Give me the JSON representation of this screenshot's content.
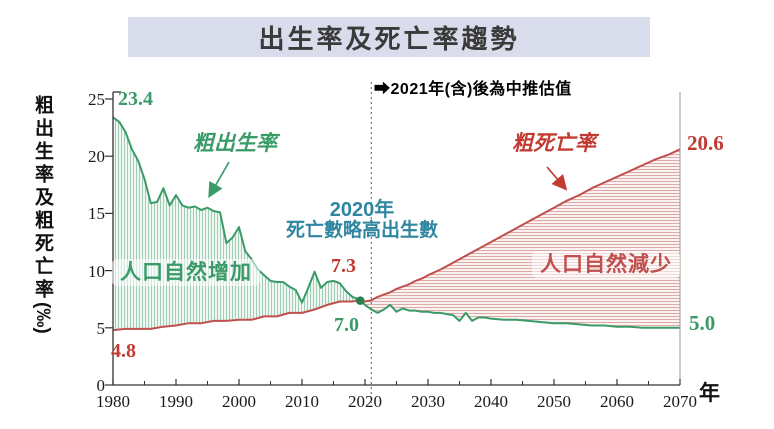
{
  "title": "出生率及死亡率趨勢",
  "colors": {
    "banner_bg": "#d9ddeb",
    "banner_text": "#3a3a3a",
    "green": "#3a9b68",
    "green_dark": "#2e7d4f",
    "red": "#c0504d",
    "red_text": "#c23b33",
    "teal": "#2e86a0",
    "black": "#000000",
    "axis": "#333333",
    "right_border": "#9a9a9a",
    "dotted_line": "#777777"
  },
  "labels": {
    "ylabel_main": "粗出生率及粗死亡率",
    "ylabel_unit": "(‰)",
    "x_unit": "年",
    "birth_start": "23.4",
    "death_start": "4.8",
    "birth_series_label": "粗出生率",
    "death_series_label": "粗死亡率",
    "natural_increase": "人口自然增加",
    "natural_decrease": "人口自然減少",
    "crossover_line1": "2020年",
    "crossover_line2": "死亡數略高出生數",
    "death_2020": "7.3",
    "birth_2020": "7.0",
    "death_end": "20.6",
    "birth_end": "5.0",
    "projection_arrow": "➡",
    "projection_note": "2021年(含)後為中推估值"
  },
  "chart_data": {
    "type": "area",
    "title": "出生率及死亡率趨勢",
    "xlabel": "年",
    "ylabel": "粗出生率及粗死亡率(‰)",
    "x_range": [
      1980,
      2070
    ],
    "y_range": [
      0,
      25
    ],
    "x_ticks": [
      1980,
      1990,
      2000,
      2010,
      2020,
      2030,
      2040,
      2050,
      2060,
      2070
    ],
    "x_minor_ticks": [
      1985,
      1995,
      2005,
      2015,
      2025,
      2035,
      2045,
      2055,
      2065
    ],
    "y_ticks": [
      0,
      5,
      10,
      15,
      20,
      25
    ],
    "grid": false,
    "projection_start": 2021,
    "crossover_note_year": 2020,
    "series": [
      {
        "name": "粗出生率",
        "color": "#3a9b68",
        "hatch": "vertical",
        "points": [
          [
            1980,
            23.4
          ],
          [
            1981,
            23.0
          ],
          [
            1982,
            22.1
          ],
          [
            1983,
            20.6
          ],
          [
            1984,
            19.6
          ],
          [
            1985,
            18.0
          ],
          [
            1986,
            15.9
          ],
          [
            1987,
            16.0
          ],
          [
            1988,
            17.2
          ],
          [
            1989,
            15.7
          ],
          [
            1990,
            16.6
          ],
          [
            1991,
            15.7
          ],
          [
            1992,
            15.5
          ],
          [
            1993,
            15.6
          ],
          [
            1994,
            15.3
          ],
          [
            1995,
            15.5
          ],
          [
            1996,
            15.2
          ],
          [
            1997,
            15.1
          ],
          [
            1998,
            12.4
          ],
          [
            1999,
            12.9
          ],
          [
            2000,
            13.8
          ],
          [
            2001,
            11.7
          ],
          [
            2002,
            11.0
          ],
          [
            2003,
            10.1
          ],
          [
            2004,
            9.6
          ],
          [
            2005,
            9.1
          ],
          [
            2006,
            9.0
          ],
          [
            2007,
            9.0
          ],
          [
            2008,
            8.6
          ],
          [
            2009,
            8.3
          ],
          [
            2010,
            7.2
          ],
          [
            2011,
            8.5
          ],
          [
            2012,
            9.9
          ],
          [
            2013,
            8.5
          ],
          [
            2014,
            9.0
          ],
          [
            2015,
            9.1
          ],
          [
            2016,
            8.9
          ],
          [
            2017,
            8.2
          ],
          [
            2018,
            7.7
          ],
          [
            2019,
            7.5
          ],
          [
            2020,
            7.0
          ],
          [
            2021,
            6.6
          ],
          [
            2022,
            6.3
          ],
          [
            2023,
            6.6
          ],
          [
            2024,
            7.0
          ],
          [
            2025,
            6.4
          ],
          [
            2026,
            6.7
          ],
          [
            2027,
            6.5
          ],
          [
            2028,
            6.5
          ],
          [
            2029,
            6.4
          ],
          [
            2030,
            6.4
          ],
          [
            2031,
            6.3
          ],
          [
            2032,
            6.3
          ],
          [
            2033,
            6.2
          ],
          [
            2034,
            6.1
          ],
          [
            2035,
            5.6
          ],
          [
            2036,
            6.3
          ],
          [
            2037,
            5.6
          ],
          [
            2038,
            5.9
          ],
          [
            2039,
            5.9
          ],
          [
            2040,
            5.8
          ],
          [
            2042,
            5.7
          ],
          [
            2044,
            5.7
          ],
          [
            2046,
            5.6
          ],
          [
            2048,
            5.5
          ],
          [
            2050,
            5.4
          ],
          [
            2052,
            5.4
          ],
          [
            2054,
            5.3
          ],
          [
            2056,
            5.2
          ],
          [
            2058,
            5.2
          ],
          [
            2060,
            5.1
          ],
          [
            2062,
            5.1
          ],
          [
            2064,
            5.0
          ],
          [
            2066,
            5.0
          ],
          [
            2068,
            5.0
          ],
          [
            2070,
            5.0
          ]
        ]
      },
      {
        "name": "粗死亡率",
        "color": "#c0504d",
        "hatch": "horizontal",
        "points": [
          [
            1980,
            4.8
          ],
          [
            1982,
            4.9
          ],
          [
            1984,
            4.9
          ],
          [
            1986,
            4.9
          ],
          [
            1988,
            5.1
          ],
          [
            1990,
            5.2
          ],
          [
            1992,
            5.4
          ],
          [
            1994,
            5.4
          ],
          [
            1996,
            5.6
          ],
          [
            1998,
            5.6
          ],
          [
            2000,
            5.7
          ],
          [
            2002,
            5.7
          ],
          [
            2004,
            6.0
          ],
          [
            2006,
            6.0
          ],
          [
            2008,
            6.3
          ],
          [
            2010,
            6.3
          ],
          [
            2012,
            6.6
          ],
          [
            2014,
            7.0
          ],
          [
            2016,
            7.3
          ],
          [
            2018,
            7.3
          ],
          [
            2019,
            7.4
          ],
          [
            2020,
            7.3
          ],
          [
            2021,
            7.4
          ],
          [
            2022,
            7.7
          ],
          [
            2023,
            7.9
          ],
          [
            2024,
            8.1
          ],
          [
            2025,
            8.4
          ],
          [
            2026,
            8.6
          ],
          [
            2027,
            8.8
          ],
          [
            2028,
            9.1
          ],
          [
            2029,
            9.3
          ],
          [
            2030,
            9.6
          ],
          [
            2032,
            10.1
          ],
          [
            2034,
            10.7
          ],
          [
            2036,
            11.3
          ],
          [
            2038,
            11.9
          ],
          [
            2040,
            12.5
          ],
          [
            2042,
            13.1
          ],
          [
            2044,
            13.7
          ],
          [
            2046,
            14.3
          ],
          [
            2048,
            14.9
          ],
          [
            2050,
            15.5
          ],
          [
            2052,
            16.1
          ],
          [
            2054,
            16.6
          ],
          [
            2056,
            17.2
          ],
          [
            2058,
            17.7
          ],
          [
            2060,
            18.2
          ],
          [
            2062,
            18.7
          ],
          [
            2064,
            19.2
          ],
          [
            2066,
            19.7
          ],
          [
            2068,
            20.1
          ],
          [
            2070,
            20.6
          ]
        ]
      }
    ],
    "key_values": {
      "birth_1980": 23.4,
      "death_1980": 4.8,
      "birth_2020": 7.0,
      "death_2020": 7.3,
      "birth_2070": 5.0,
      "death_2070": 20.6
    }
  }
}
